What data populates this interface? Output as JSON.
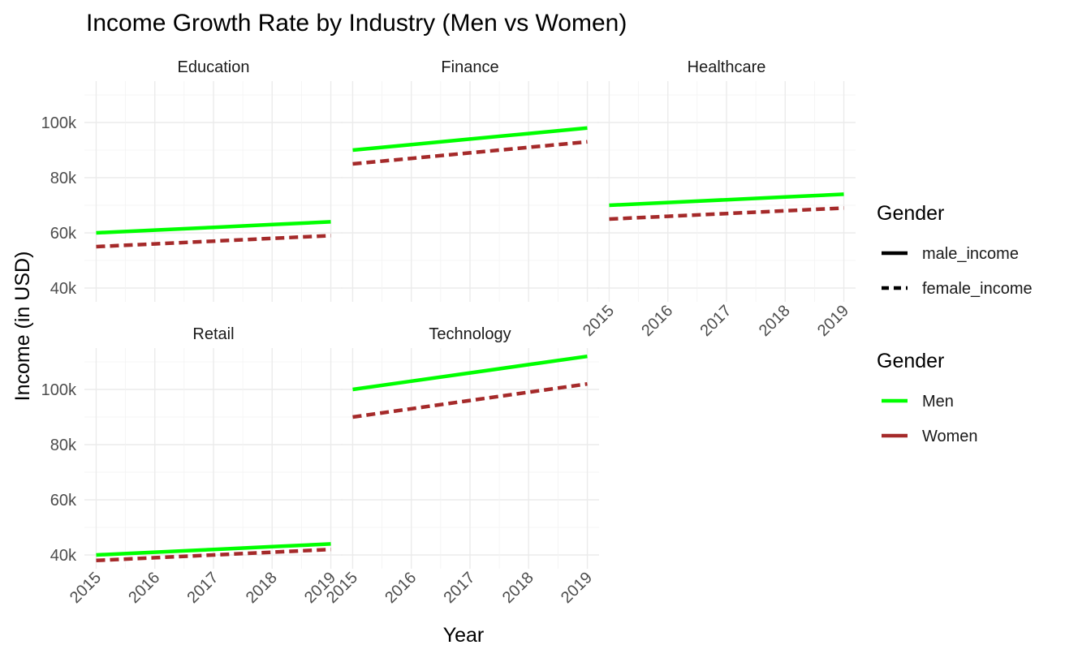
{
  "chart_data": {
    "type": "line",
    "title": "Income Growth Rate by Industry (Men vs Women)",
    "xlabel": "Year",
    "ylabel": "Income (in USD)",
    "x": [
      2015,
      2016,
      2017,
      2018,
      2019
    ],
    "x_tick_labels": [
      "2015",
      "2016",
      "2017",
      "2018",
      "2019"
    ],
    "y_ticks": [
      40000,
      60000,
      80000,
      100000
    ],
    "y_tick_labels": [
      "40k",
      "60k",
      "80k",
      "100k"
    ],
    "ylim": [
      35000,
      115000
    ],
    "xlim": [
      2014.8,
      2019.2
    ],
    "grid": true,
    "legend_position": "right",
    "colors": {
      "men": "#00ff00",
      "women": "#a52a2a",
      "linetype_key": "#000000"
    },
    "legends": [
      {
        "title": "Gender",
        "entries": [
          {
            "label": "male_income",
            "linetype": "solid"
          },
          {
            "label": "female_income",
            "linetype": "dashed"
          }
        ]
      },
      {
        "title": "Gender",
        "entries": [
          {
            "label": "Men",
            "color": "#00ff00"
          },
          {
            "label": "Women",
            "color": "#a52a2a"
          }
        ]
      }
    ],
    "panels": [
      {
        "name": "Education",
        "series": [
          {
            "group": "Men",
            "linetype": "solid",
            "values": [
              60000,
              61000,
              62000,
              63000,
              64000
            ]
          },
          {
            "group": "Women",
            "linetype": "dashed",
            "values": [
              55000,
              56000,
              57000,
              58000,
              59000
            ]
          }
        ]
      },
      {
        "name": "Finance",
        "series": [
          {
            "group": "Men",
            "linetype": "solid",
            "values": [
              90000,
              92000,
              94000,
              96000,
              98000
            ]
          },
          {
            "group": "Women",
            "linetype": "dashed",
            "values": [
              85000,
              87000,
              89000,
              91000,
              93000
            ]
          }
        ]
      },
      {
        "name": "Healthcare",
        "series": [
          {
            "group": "Men",
            "linetype": "solid",
            "values": [
              70000,
              71000,
              72000,
              73000,
              74000
            ]
          },
          {
            "group": "Women",
            "linetype": "dashed",
            "values": [
              65000,
              66000,
              67000,
              68000,
              69000
            ]
          }
        ]
      },
      {
        "name": "Retail",
        "series": [
          {
            "group": "Men",
            "linetype": "solid",
            "values": [
              40000,
              41000,
              42000,
              43000,
              44000
            ]
          },
          {
            "group": "Women",
            "linetype": "dashed",
            "values": [
              38000,
              39000,
              40000,
              41000,
              42000
            ]
          }
        ]
      },
      {
        "name": "Technology",
        "series": [
          {
            "group": "Men",
            "linetype": "solid",
            "values": [
              100000,
              103000,
              106000,
              109000,
              112000
            ]
          },
          {
            "group": "Women",
            "linetype": "dashed",
            "values": [
              90000,
              93000,
              96000,
              99000,
              102000
            ]
          }
        ]
      }
    ]
  }
}
